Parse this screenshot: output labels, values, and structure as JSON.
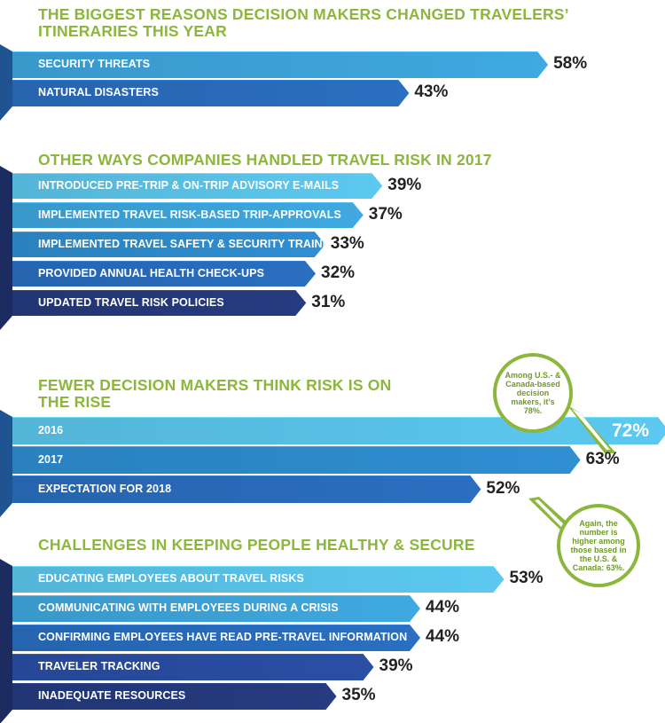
{
  "chart_data": [
    {
      "type": "bar",
      "title": "THE BIGGEST REASONS DECISION MAKERS CHANGED TRAVELERS’ ITINERARIES THIS YEAR",
      "categories": [
        "SECURITY THREATS",
        "NATURAL DISASTERS"
      ],
      "values": [
        58,
        43
      ],
      "value_labels": [
        "58%",
        "43%"
      ]
    },
    {
      "type": "bar",
      "title": "OTHER WAYS COMPANIES HANDLED TRAVEL RISK IN 2017",
      "categories": [
        "INTRODUCED PRE-TRIP & ON-TRIP ADVISORY E-MAILS",
        "IMPLEMENTED TRAVEL RISK-BASED TRIP-APPROVALS",
        "IMPLEMENTED TRAVEL SAFETY & SECURITY TRAINING",
        "PROVIDED ANNUAL HEALTH CHECK-UPS",
        "UPDATED TRAVEL RISK POLICIES"
      ],
      "values": [
        39,
        37,
        33,
        32,
        31
      ],
      "value_labels": [
        "39%",
        "37%",
        "33%",
        "32%",
        "31%"
      ]
    },
    {
      "type": "bar",
      "title": "FEWER DECISION MAKERS THINK RISK IS ON THE RISE",
      "categories": [
        "2016",
        "2017",
        "EXPECTATION FOR 2018"
      ],
      "values": [
        72,
        63,
        52
      ],
      "value_labels": [
        "72%",
        "63%",
        "52%"
      ],
      "annotations": [
        "Among U.S.- & Canada-based decision makers, it’s 78%.",
        "Again, the number is higher among those based in the U.S. & Canada: 63%."
      ]
    },
    {
      "type": "bar",
      "title": "CHALLENGES IN KEEPING PEOPLE HEALTHY & SECURE",
      "categories": [
        "EDUCATING EMPLOYEES ABOUT TRAVEL RISKS",
        "COMMUNICATING WITH EMPLOYEES DURING A CRISIS",
        "CONFIRMING EMPLOYEES HAVE READ PRE-TRAVEL INFORMATION",
        "TRAVELER TRACKING",
        "INADEQUATE RESOURCES"
      ],
      "values": [
        53,
        44,
        44,
        39,
        35
      ],
      "value_labels": [
        "53%",
        "44%",
        "44%",
        "39%",
        "35%"
      ]
    }
  ],
  "colors": {
    "title_green": "#8cb63c",
    "light_blue": "#5cc9f0",
    "sky_blue": "#3fa9e0",
    "mid_blue": "#2f8fd3",
    "blue": "#2a6fc1",
    "royal_blue": "#2a4fa5",
    "navy": "#263b80"
  }
}
